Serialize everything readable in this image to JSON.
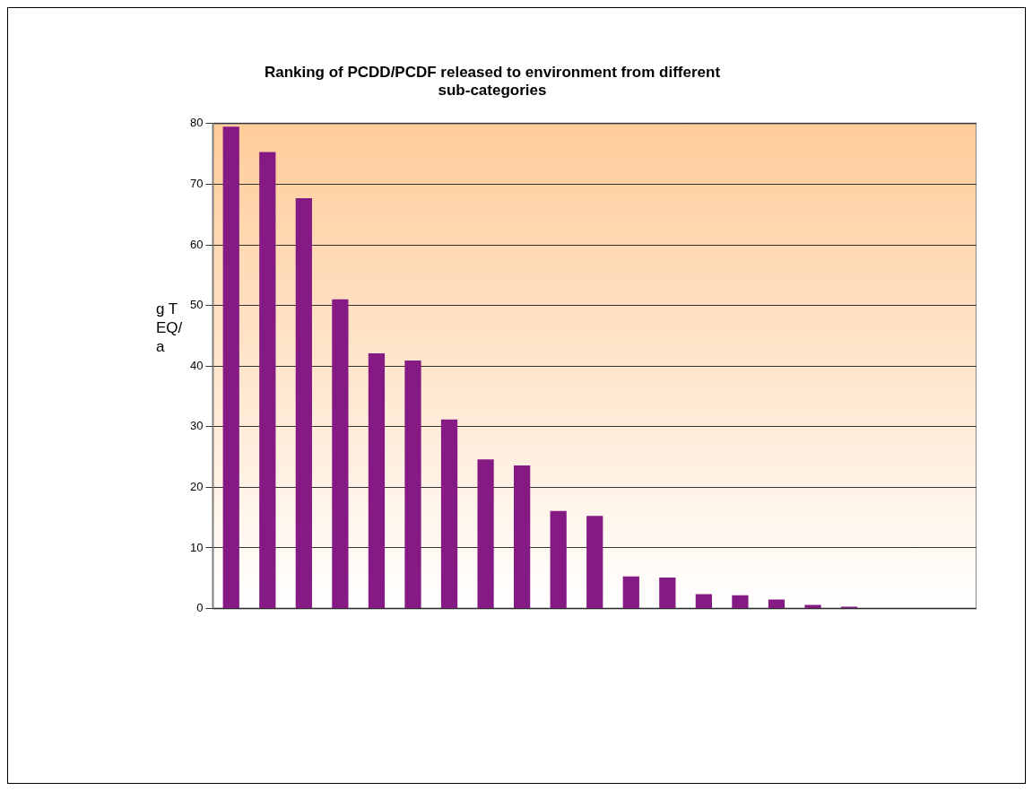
{
  "chart_data": {
    "type": "bar",
    "title": "Ranking of PCDD/PCDF released to environment from different sub-categories",
    "ylabel": "g TEQ/a",
    "categories": [
      null,
      null,
      null,
      null,
      null,
      null,
      null,
      null,
      null,
      null,
      null,
      null,
      null,
      null,
      null,
      null,
      null,
      null,
      null,
      null,
      null
    ],
    "values": [
      79.5,
      75.3,
      67.7,
      51,
      42.1,
      40.9,
      31.2,
      24.6,
      23.6,
      16.1,
      15.3,
      5.3,
      5.1,
      2.4,
      2.2,
      1.5,
      0.6,
      0.3,
      0.1,
      0.1,
      0.1
    ],
    "color": "#851a85",
    "ylim": [
      0,
      80
    ],
    "yticks": [
      0,
      10,
      20,
      30,
      40,
      50,
      60,
      70,
      80
    ],
    "grid": "y",
    "legend": false
  }
}
